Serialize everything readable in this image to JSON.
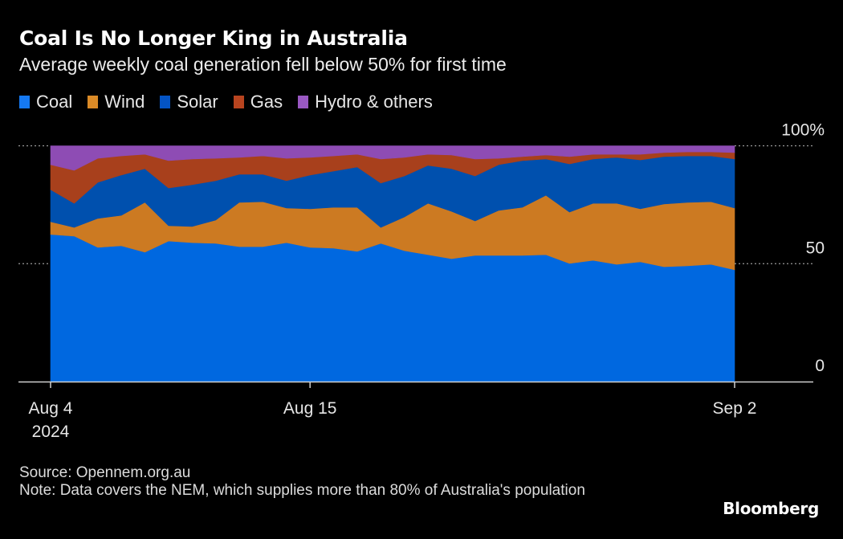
{
  "header": {
    "title": "Coal Is No Longer King in Australia",
    "subtitle": "Average weekly coal generation fell below 50% for first time"
  },
  "legend": [
    {
      "label": "Coal",
      "color": "#1579f2"
    },
    {
      "label": "Wind",
      "color": "#da8a27"
    },
    {
      "label": "Solar",
      "color": "#0454c4"
    },
    {
      "label": "Gas",
      "color": "#b8441f"
    },
    {
      "label": "Hydro & others",
      "color": "#9958c2"
    }
  ],
  "footer": {
    "source": "Source: Opennem.org.au",
    "note": "Note: Data covers the NEM, which supplies more than 80% of Australia's population"
  },
  "brand": "Bloomberg",
  "chart_data": {
    "type": "area",
    "stacked": true,
    "title": "Coal Is No Longer King in Australia",
    "subtitle": "Average weekly coal generation fell below 50% for first time",
    "xlabel": "",
    "ylabel": "",
    "ylim": [
      0,
      100
    ],
    "grid": true,
    "legend_position": "top-left",
    "y_ticks": [
      {
        "value": 100,
        "label": "100%"
      },
      {
        "value": 50,
        "label": "50"
      },
      {
        "value": 0,
        "label": "0"
      }
    ],
    "x_ticks": [
      {
        "index": 0,
        "label": "Aug 4",
        "sublabel": "2024"
      },
      {
        "index": 11,
        "label": "Aug 15",
        "sublabel": ""
      },
      {
        "index": 29,
        "label": "Sep 2",
        "sublabel": ""
      }
    ],
    "x": [
      "Aug 4",
      "Aug 5",
      "Aug 6",
      "Aug 7",
      "Aug 8",
      "Aug 9",
      "Aug 10",
      "Aug 11",
      "Aug 12",
      "Aug 13",
      "Aug 14",
      "Aug 15",
      "Aug 16",
      "Aug 17",
      "Aug 18",
      "Aug 19",
      "Aug 20",
      "Aug 21",
      "Aug 22",
      "Aug 23",
      "Aug 24",
      "Aug 25",
      "Aug 26",
      "Aug 27",
      "Aug 28",
      "Aug 29",
      "Aug 30",
      "Aug 31",
      "Sep 1",
      "Sep 2"
    ],
    "series": [
      {
        "name": "Coal",
        "color": "#0068e0",
        "values": [
          62.4,
          61.7,
          56.9,
          57.6,
          54.9,
          59.6,
          58.9,
          58.6,
          57.2,
          57.2,
          58.9,
          56.9,
          56.6,
          55.2,
          58.6,
          55.5,
          53.8,
          52.1,
          53.5,
          53.5,
          53.5,
          53.8,
          50.1,
          51.4,
          49.7,
          50.8,
          48.7,
          49.1,
          49.7,
          47.4
        ]
      },
      {
        "name": "Wind",
        "color": "#cc7a22",
        "values": [
          5.4,
          3.7,
          12.3,
          12.9,
          21.1,
          6.5,
          6.9,
          9.9,
          18.8,
          19.1,
          14.7,
          16.4,
          17.3,
          18.7,
          6.8,
          14.3,
          21.8,
          20.1,
          14.6,
          19.1,
          20.4,
          25.2,
          21.8,
          24.2,
          25.9,
          22.5,
          26.6,
          26.9,
          26.6,
          26.2
        ]
      },
      {
        "name": "Solar",
        "color": "#0050ae",
        "values": [
          13.6,
          10.2,
          15.3,
          17.1,
          14.3,
          16.0,
          17.7,
          16.7,
          11.9,
          11.6,
          11.6,
          14.3,
          15.4,
          17.1,
          18.8,
          17.4,
          16.1,
          18.1,
          19.1,
          19.4,
          19.8,
          15.4,
          20.4,
          18.8,
          19.5,
          20.7,
          20.1,
          19.7,
          19.4,
          20.8
        ]
      },
      {
        "name": "Gas",
        "color": "#a8401c",
        "values": [
          10.6,
          14.0,
          10.2,
          8.1,
          6.1,
          11.6,
          10.9,
          9.5,
          7.2,
          7.8,
          9.5,
          7.5,
          6.4,
          5.4,
          10.2,
          7.9,
          4.7,
          5.8,
          7.2,
          2.7,
          1.7,
          1.7,
          3.1,
          2.0,
          1.3,
          2.4,
          1.7,
          1.7,
          1.7,
          2.7
        ]
      },
      {
        "name": "Hydro & others",
        "color": "#8e4cb4",
        "values": [
          8.0,
          10.4,
          5.3,
          4.3,
          3.6,
          6.3,
          5.6,
          5.3,
          4.9,
          4.3,
          5.3,
          4.9,
          4.3,
          3.6,
          5.6,
          4.9,
          3.6,
          3.9,
          5.6,
          5.3,
          4.6,
          3.9,
          4.6,
          3.6,
          3.6,
          3.6,
          2.9,
          2.6,
          2.6,
          2.9
        ]
      }
    ]
  }
}
